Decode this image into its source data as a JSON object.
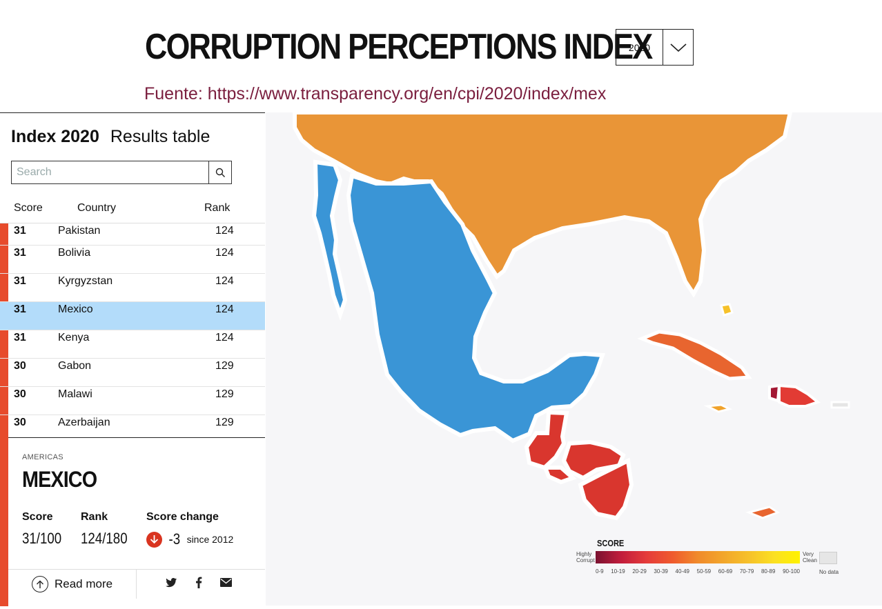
{
  "header": {
    "title": "CORRUPTION PERCEPTIONS INDEX",
    "year": "2020",
    "source": "Fuente: https://www.transparency.org/en/cpi/2020/index/mex"
  },
  "panel": {
    "index_label": "Index 2020",
    "results_label": "Results table",
    "search_placeholder": "Search",
    "columns": {
      "score": "Score",
      "country": "Country",
      "rank": "Rank"
    },
    "rows": [
      {
        "score": "31",
        "country": "Pakistan",
        "rank": "124",
        "selected": false
      },
      {
        "score": "31",
        "country": "Bolivia",
        "rank": "124",
        "selected": false
      },
      {
        "score": "31",
        "country": "Kyrgyzstan",
        "rank": "124",
        "selected": false
      },
      {
        "score": "31",
        "country": "Mexico",
        "rank": "124",
        "selected": true
      },
      {
        "score": "31",
        "country": "Kenya",
        "rank": "124",
        "selected": false
      },
      {
        "score": "30",
        "country": "Gabon",
        "rank": "129",
        "selected": false
      },
      {
        "score": "30",
        "country": "Malawi",
        "rank": "129",
        "selected": false
      },
      {
        "score": "30",
        "country": "Azerbaijan",
        "rank": "129",
        "selected": false
      }
    ]
  },
  "detail": {
    "region": "AMERICAS",
    "country": "MEXICO",
    "score_label": "Score",
    "score_value": "31/100",
    "rank_label": "Rank",
    "rank_value": "124/180",
    "change_label": "Score change",
    "change_value": "-3",
    "change_since": "since 2012",
    "read_more": "Read more"
  },
  "legend": {
    "title": "SCORE",
    "left_label": "Highly Corrupt",
    "right_label": "Very Clean",
    "ranges": [
      "0-9",
      "10-19",
      "20-29",
      "30-39",
      "40-49",
      "50-59",
      "60-69",
      "70-79",
      "80-89",
      "90-100"
    ],
    "no_data": "No data"
  },
  "colors": {
    "mexico": "#3a95d6",
    "usa": "#e99537",
    "central_america": "#d9362e",
    "cuba": "#e8652f",
    "accent_red": "#e74b2c",
    "selected_row": "#b3dcfa",
    "source_text": "#7a1e3e"
  },
  "icons": {
    "chevron": "chevron-down-icon",
    "search": "search-icon",
    "read_more": "arrow-up-circle-icon",
    "twitter": "twitter-icon",
    "facebook": "facebook-icon",
    "email": "email-icon",
    "score_change": "arrow-down-circle-icon"
  }
}
